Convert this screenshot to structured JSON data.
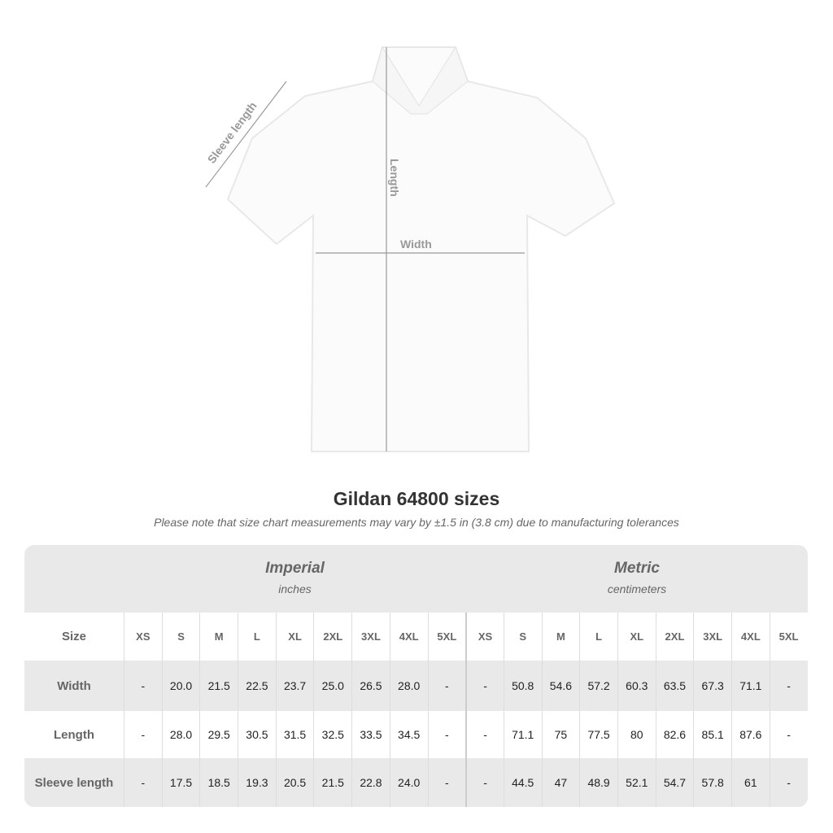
{
  "diagram": {
    "sleeve_label": "Sleeve length",
    "length_label": "Length",
    "width_label": "Width"
  },
  "title": "Gildan 64800 sizes",
  "note": "Please note that size chart measurements may vary by ±1.5 in (3.8 cm) due to manufacturing tolerances",
  "imperial": {
    "title": "Imperial",
    "unit": "inches"
  },
  "metric": {
    "title": "Metric",
    "unit": "centimeters"
  },
  "size_header": "Size",
  "sizes": [
    "XS",
    "S",
    "M",
    "L",
    "XL",
    "2XL",
    "3XL",
    "4XL",
    "5XL"
  ],
  "rows": [
    {
      "label": "Width",
      "imperial": [
        "-",
        "20.0",
        "21.5",
        "22.5",
        "23.7",
        "25.0",
        "26.5",
        "28.0",
        "-"
      ],
      "metric": [
        "-",
        "50.8",
        "54.6",
        "57.2",
        "60.3",
        "63.5",
        "67.3",
        "71.1",
        "-"
      ]
    },
    {
      "label": "Length",
      "imperial": [
        "-",
        "28.0",
        "29.5",
        "30.5",
        "31.5",
        "32.5",
        "33.5",
        "34.5",
        "-"
      ],
      "metric": [
        "-",
        "71.1",
        "75",
        "77.5",
        "80",
        "82.6",
        "85.1",
        "87.6",
        "-"
      ]
    },
    {
      "label": "Sleeve length",
      "imperial": [
        "-",
        "17.5",
        "18.5",
        "19.3",
        "20.5",
        "21.5",
        "22.8",
        "24.0",
        "-"
      ],
      "metric": [
        "-",
        "44.5",
        "47",
        "48.9",
        "52.1",
        "54.7",
        "57.8",
        "61",
        "-"
      ]
    }
  ]
}
